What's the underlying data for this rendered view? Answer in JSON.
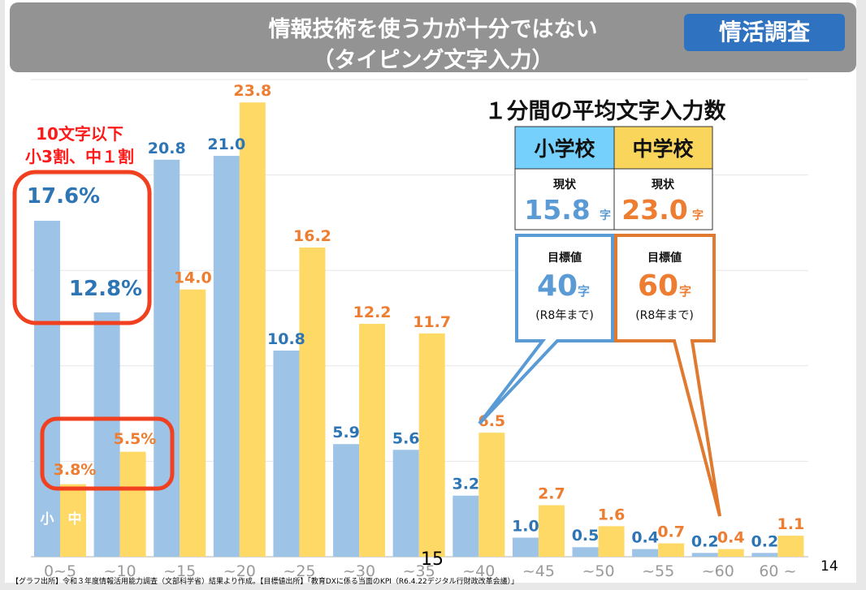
{
  "header": {
    "title_line1": "情報技術を使う力が十分ではない",
    "title_line2": "（タイピング文字入力）",
    "badge": "情活調査"
  },
  "chart_data": {
    "type": "bar",
    "categories": [
      "0~5",
      "~10",
      "~15",
      "~20",
      "~25",
      "~30",
      "~35",
      "~40",
      "~45",
      "~50",
      "~55",
      "~60",
      "60 ~"
    ],
    "series": [
      {
        "name": "小",
        "values": [
          17.6,
          12.8,
          20.8,
          21.0,
          10.8,
          5.9,
          5.6,
          3.2,
          1.0,
          0.5,
          0.4,
          0.2,
          0.2
        ],
        "color": "#9dc3e6",
        "label_color": "#2e75b6"
      },
      {
        "name": "中",
        "values": [
          3.8,
          5.5,
          14.0,
          23.8,
          16.2,
          12.2,
          11.7,
          6.5,
          2.7,
          1.6,
          0.7,
          0.4,
          1.1
        ],
        "color": "#ffd966",
        "label_color": "#ed7d31"
      }
    ],
    "data_labels": {
      "小": [
        "17.6%",
        "12.8%",
        "20.8",
        "21.0",
        "10.8",
        "5.9",
        "5.6",
        "3.2",
        "1.0",
        "0.5",
        "0.4",
        "0.2",
        "0.2"
      ],
      "中": [
        "3.8%",
        "5.5%",
        "14.0",
        "23.8",
        "16.2",
        "12.2",
        "11.7",
        "6.5",
        "2.7",
        "1.6",
        "0.7",
        "0.4",
        "1.1"
      ]
    },
    "ylim": [
      0,
      25
    ],
    "grid": true,
    "legend": "inside-first-bars"
  },
  "annotation": {
    "line1": "10文字以下",
    "line2": "小3割、中１割",
    "color": "#ff1a1a"
  },
  "panel": {
    "title": "１分間の平均文字入力数",
    "elementary": {
      "label": "小学校",
      "current_label": "現状",
      "current_value": "15.8",
      "unit": "字",
      "target_label": "目標値",
      "target_value": "40",
      "target_unit": "字",
      "target_note": "(R8年まで)"
    },
    "junior": {
      "label": "中学校",
      "current_label": "現状",
      "current_value": "23.0",
      "unit": "字",
      "target_label": "目標値",
      "target_value": "60",
      "target_unit": "字",
      "target_note": "(R8年まで)"
    }
  },
  "footer": "【グラフ出所】令和３年度情報活用能力調査（文部科学省）結果より作成。【目標値出所】｢教育DXに係る当面のKPI（R6.4.22デジタル行財政改革会議）｣",
  "page_number": "14",
  "overlay_text": "15"
}
